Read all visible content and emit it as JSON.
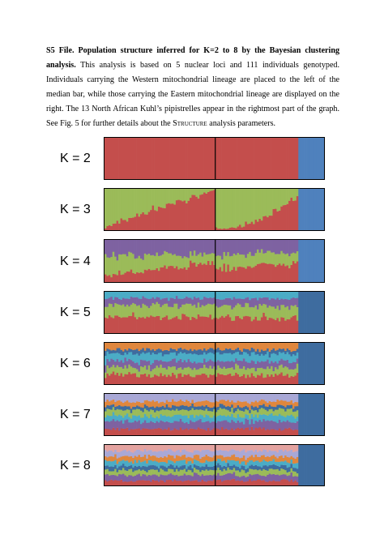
{
  "caption": {
    "heading": "S5 File. Population structure inferred for K=2 to 8 by the Bayesian clustering analysis.",
    "body_part1": " This analysis is based on 5 nuclear loci and 111 individuals genotyped. Individuals carrying the Western mitochondrial lineage are placed to the left of the median bar, while those carrying the Eastern mitochondrial lineage are displayed on the right. The 13 North African Kuhl’s pipistrelles appear in the rightmost part of the graph. See Fig. 5 for further details about the ",
    "body_sc": "Structure",
    "body_part2": " analysis parameters."
  },
  "chart_data": {
    "type": "bar",
    "description_free": true,
    "n_individuals": 111,
    "groups": [
      {
        "name": "",
        "count": 56
      },
      {
        "name": "",
        "count": 42
      },
      {
        "name": "",
        "count": 13
      }
    ],
    "colors": {
      "red": "#c44e4c",
      "blue": "#4f81bd",
      "green": "#9bbb59",
      "purple": "#7e62a1",
      "cyan": "#4bacc6",
      "orange": "#e0873d",
      "steel": "#3e6c9f",
      "lavender": "#a9a8d6",
      "pink": "#e4a3a0",
      "divider": "#000000"
    },
    "panels": [
      {
        "label": "K = 2",
        "layers": [
          {
            "color": "red",
            "west": [
              1.0,
              1.0
            ],
            "east": [
              1.0,
              1.0
            ],
            "na": [
              0.0,
              0.0
            ]
          },
          {
            "color": "blue",
            "west": [
              0.0,
              0.0
            ],
            "east": [
              0.0,
              0.0
            ],
            "na": [
              1.0,
              1.0
            ]
          }
        ]
      },
      {
        "label": "K = 3",
        "layers": [
          {
            "color": "red",
            "west": [
              0.08,
              0.97
            ],
            "east": [
              0.05,
              0.82
            ],
            "na": [
              0.0,
              0.0
            ]
          },
          {
            "color": "green",
            "west": [
              0.92,
              0.03
            ],
            "east": [
              0.95,
              0.18
            ],
            "na": [
              0.0,
              0.0
            ]
          },
          {
            "color": "blue",
            "west": [
              0.0,
              0.0
            ],
            "east": [
              0.0,
              0.0
            ],
            "na": [
              1.0,
              1.0
            ]
          }
        ]
      },
      {
        "label": "K = 4",
        "layers": [
          {
            "color": "red",
            "west": [
              0.15,
              0.5
            ],
            "east": [
              0.3,
              0.45
            ],
            "na": [
              0.0,
              0.0
            ]
          },
          {
            "color": "green",
            "west": [
              0.45,
              0.2
            ],
            "east": [
              0.35,
              0.25
            ],
            "na": [
              0.0,
              0.0
            ]
          },
          {
            "color": "purple",
            "west": [
              0.4,
              0.3
            ],
            "east": [
              0.35,
              0.3
            ],
            "na": [
              0.0,
              0.0
            ]
          },
          {
            "color": "blue",
            "west": [
              0.0,
              0.0
            ],
            "east": [
              0.0,
              0.0
            ],
            "na": [
              1.0,
              1.0
            ]
          }
        ]
      },
      {
        "label": "K = 5",
        "layers": [
          {
            "color": "red",
            "west": [
              0.38,
              0.38
            ],
            "east": [
              0.38,
              0.38
            ],
            "na": [
              0.0,
              0.0
            ]
          },
          {
            "color": "green",
            "west": [
              0.3,
              0.3
            ],
            "east": [
              0.28,
              0.28
            ],
            "na": [
              0.0,
              0.0
            ]
          },
          {
            "color": "purple",
            "west": [
              0.17,
              0.17
            ],
            "east": [
              0.18,
              0.18
            ],
            "na": [
              0.0,
              0.0
            ]
          },
          {
            "color": "cyan",
            "west": [
              0.15,
              0.15
            ],
            "east": [
              0.16,
              0.16
            ],
            "na": [
              0.0,
              0.0
            ]
          },
          {
            "color": "steel",
            "west": [
              0.0,
              0.0
            ],
            "east": [
              0.0,
              0.0
            ],
            "na": [
              1.0,
              1.0
            ]
          }
        ]
      },
      {
        "label": "K = 6",
        "layers": [
          {
            "color": "red",
            "west": [
              0.22,
              0.22
            ],
            "east": [
              0.22,
              0.22
            ],
            "na": [
              0.0,
              0.0
            ]
          },
          {
            "color": "green",
            "west": [
              0.18,
              0.18
            ],
            "east": [
              0.18,
              0.18
            ],
            "na": [
              0.0,
              0.0
            ]
          },
          {
            "color": "purple",
            "west": [
              0.16,
              0.16
            ],
            "east": [
              0.16,
              0.16
            ],
            "na": [
              0.0,
              0.0
            ]
          },
          {
            "color": "cyan",
            "west": [
              0.18,
              0.18
            ],
            "east": [
              0.18,
              0.18
            ],
            "na": [
              0.0,
              0.0
            ]
          },
          {
            "color": "steel",
            "west": [
              0.1,
              0.1
            ],
            "east": [
              0.1,
              0.1
            ],
            "na": [
              1.0,
              1.0
            ]
          },
          {
            "color": "orange",
            "west": [
              0.16,
              0.16
            ],
            "east": [
              0.16,
              0.16
            ],
            "na": [
              0.0,
              0.0
            ]
          }
        ]
      },
      {
        "label": "K = 7",
        "layers": [
          {
            "color": "red",
            "west": [
              0.15,
              0.15
            ],
            "east": [
              0.15,
              0.15
            ],
            "na": [
              0.0,
              0.0
            ]
          },
          {
            "color": "purple",
            "west": [
              0.18,
              0.18
            ],
            "east": [
              0.18,
              0.18
            ],
            "na": [
              0.0,
              0.0
            ]
          },
          {
            "color": "cyan",
            "west": [
              0.14,
              0.14
            ],
            "east": [
              0.14,
              0.14
            ],
            "na": [
              0.0,
              0.0
            ]
          },
          {
            "color": "green",
            "west": [
              0.14,
              0.14
            ],
            "east": [
              0.14,
              0.14
            ],
            "na": [
              0.0,
              0.0
            ]
          },
          {
            "color": "steel",
            "west": [
              0.09,
              0.09
            ],
            "east": [
              0.09,
              0.09
            ],
            "na": [
              1.0,
              1.0
            ]
          },
          {
            "color": "orange",
            "west": [
              0.12,
              0.12
            ],
            "east": [
              0.12,
              0.12
            ],
            "na": [
              0.0,
              0.0
            ]
          },
          {
            "color": "lavender",
            "west": [
              0.18,
              0.18
            ],
            "east": [
              0.18,
              0.18
            ],
            "na": [
              0.0,
              0.0
            ]
          }
        ]
      },
      {
        "label": "K = 8",
        "layers": [
          {
            "color": "red",
            "west": [
              0.12,
              0.12
            ],
            "east": [
              0.12,
              0.12
            ],
            "na": [
              0.0,
              0.0
            ]
          },
          {
            "color": "purple",
            "west": [
              0.14,
              0.14
            ],
            "east": [
              0.14,
              0.14
            ],
            "na": [
              0.0,
              0.0
            ]
          },
          {
            "color": "green",
            "west": [
              0.12,
              0.12
            ],
            "east": [
              0.12,
              0.12
            ],
            "na": [
              0.0,
              0.0
            ]
          },
          {
            "color": "steel",
            "west": [
              0.1,
              0.1
            ],
            "east": [
              0.1,
              0.1
            ],
            "na": [
              1.0,
              1.0
            ]
          },
          {
            "color": "cyan",
            "west": [
              0.12,
              0.12
            ],
            "east": [
              0.12,
              0.12
            ],
            "na": [
              0.0,
              0.0
            ]
          },
          {
            "color": "orange",
            "west": [
              0.12,
              0.12
            ],
            "east": [
              0.12,
              0.12
            ],
            "na": [
              0.0,
              0.0
            ]
          },
          {
            "color": "lavender",
            "west": [
              0.14,
              0.14
            ],
            "east": [
              0.14,
              0.14
            ],
            "na": [
              0.0,
              0.0
            ]
          },
          {
            "color": "pink",
            "west": [
              0.14,
              0.14
            ],
            "east": [
              0.14,
              0.14
            ],
            "na": [
              0.0,
              0.0
            ]
          }
        ]
      }
    ]
  }
}
